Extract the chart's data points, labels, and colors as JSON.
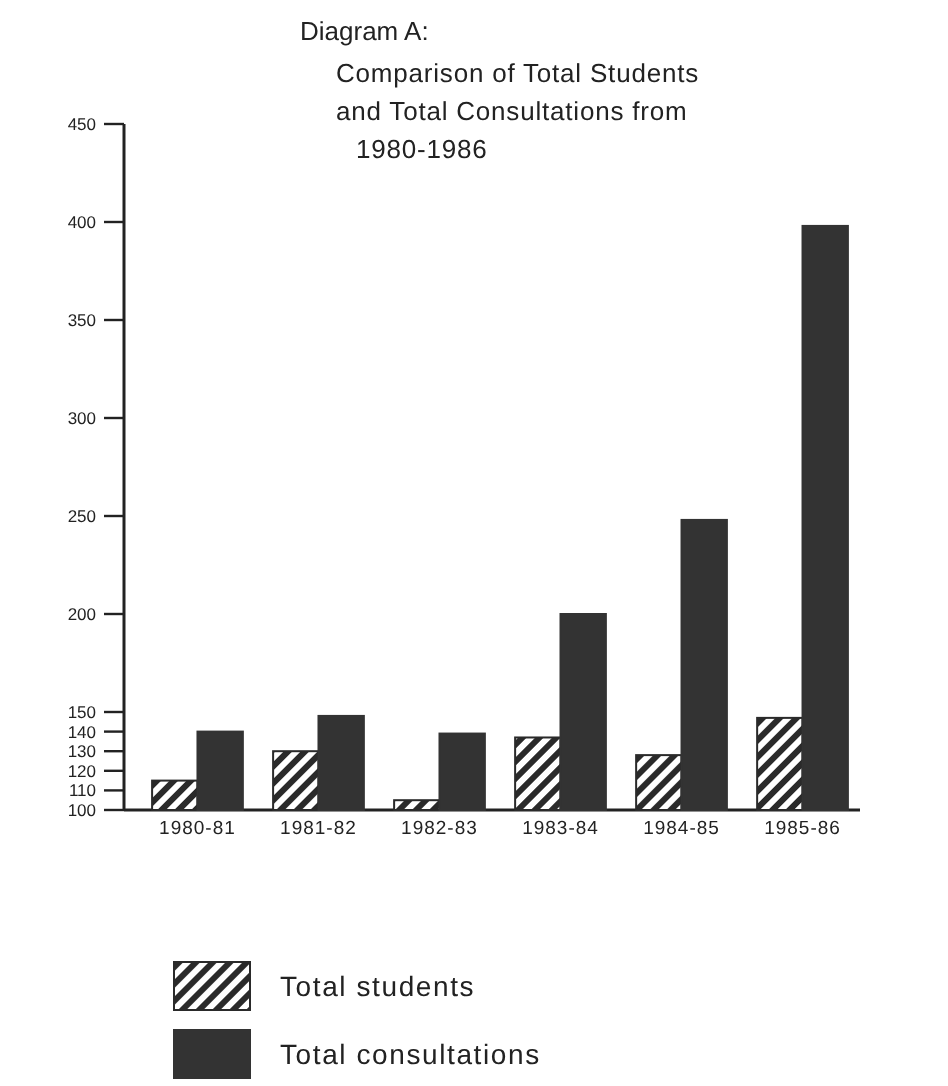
{
  "chart_data": {
    "type": "bar",
    "title": "Diagram A:",
    "subtitle": "Comparison of Total Students and Total Consultations from 1980-1986",
    "categories": [
      "1980-81",
      "1981-82",
      "1982-83",
      "1983-84",
      "1984-85",
      "1985-86"
    ],
    "series": [
      {
        "name": "Total students",
        "color": "#2a2a2a",
        "values": [
          115,
          130,
          105,
          137,
          128,
          147
        ]
      },
      {
        "name": "Total consultations",
        "color": "#333333",
        "values": [
          140,
          148,
          139,
          200,
          248,
          398
        ]
      }
    ],
    "ylim": [
      100,
      450
    ],
    "yticks": [
      100,
      110,
      120,
      130,
      140,
      150,
      200,
      250,
      300,
      350,
      400,
      450
    ],
    "grid": false,
    "legend": "bottom"
  }
}
